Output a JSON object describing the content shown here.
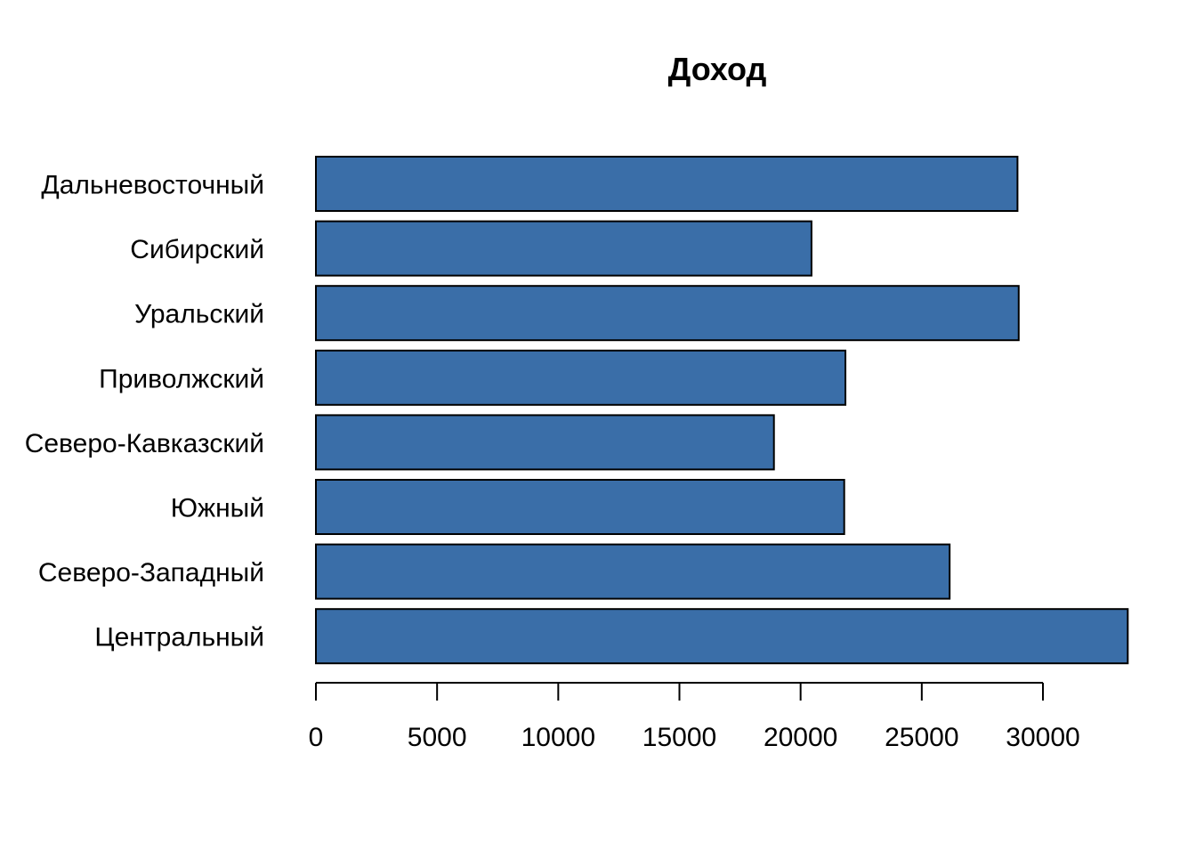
{
  "chart_data": {
    "type": "bar",
    "orientation": "horizontal",
    "title": "Доход",
    "xlabel": "",
    "ylabel": "",
    "categories": [
      "Дальневосточный",
      "Сибирский",
      "Уральский",
      "Приволжский",
      "Северо-Кавказский",
      "Южный",
      "Северо-Западный",
      "Центральный"
    ],
    "values": [
      28950,
      20450,
      29000,
      21850,
      18900,
      21800,
      26150,
      33500
    ],
    "xlim": [
      0,
      33500
    ],
    "xticks": [
      0,
      5000,
      10000,
      15000,
      20000,
      25000,
      30000
    ],
    "xtick_labels": [
      "0",
      "5000",
      "10000",
      "15000",
      "20000",
      "25000",
      "30000"
    ],
    "grid": false,
    "legend": "none",
    "bar_color": "#3A6EA8",
    "bar_edge_color": "#000000"
  }
}
